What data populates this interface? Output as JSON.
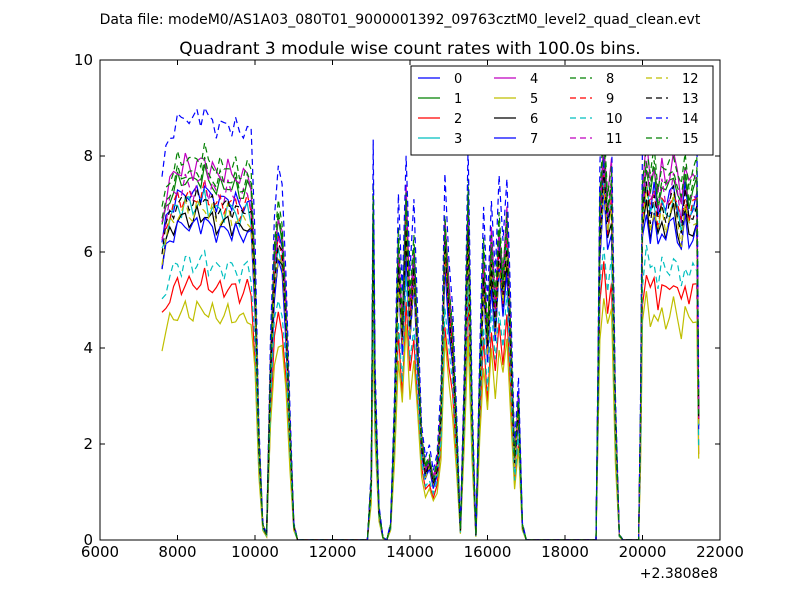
{
  "suptitle": "Data file: modeM0/AS1A03_080T01_9000001392_09763cztM0_level2_quad_clean.evt",
  "chart_data": {
    "type": "line",
    "title": "Quadrant 3 module wise count rates with 100.0s bins.",
    "xlabel": "",
    "ylabel": "",
    "xlim": [
      6000,
      22000
    ],
    "ylim": [
      0,
      10
    ],
    "x_offset_label": "+2.3808e8",
    "xticks": [
      "6000",
      "8000",
      "10000",
      "12000",
      "14000",
      "16000",
      "18000",
      "20000",
      "22000"
    ],
    "xtick_values": [
      6000,
      8000,
      10000,
      12000,
      14000,
      16000,
      18000,
      20000,
      22000
    ],
    "yticks": [
      "0",
      "2",
      "4",
      "6",
      "8",
      "10"
    ],
    "ytick_values": [
      0,
      2,
      4,
      6,
      8,
      10
    ],
    "legend_position": "upper-right",
    "envelope": [
      [
        7600,
        6.2
      ],
      [
        7700,
        6.6
      ],
      [
        7800,
        6.9
      ],
      [
        7900,
        7.0
      ],
      [
        8000,
        7.2
      ],
      [
        8100,
        7.1
      ],
      [
        8200,
        7.3
      ],
      [
        8300,
        7.2
      ],
      [
        8400,
        7.1
      ],
      [
        8500,
        7.3
      ],
      [
        8600,
        7.2
      ],
      [
        8700,
        7.4
      ],
      [
        8800,
        7.1
      ],
      [
        8900,
        7.2
      ],
      [
        9000,
        7.0
      ],
      [
        9100,
        7.1
      ],
      [
        9200,
        7.0
      ],
      [
        9300,
        7.2
      ],
      [
        9400,
        7.0
      ],
      [
        9500,
        7.1
      ],
      [
        9600,
        6.9
      ],
      [
        9700,
        7.0
      ],
      [
        9800,
        7.1
      ],
      [
        9900,
        6.9
      ],
      [
        10000,
        5.2
      ],
      [
        10100,
        2.0
      ],
      [
        10200,
        0.3
      ],
      [
        10300,
        0.1
      ],
      [
        10400,
        3.5
      ],
      [
        10500,
        5.6
      ],
      [
        10600,
        6.3
      ],
      [
        10700,
        6.0
      ],
      [
        10800,
        4.6
      ],
      [
        10900,
        2.3
      ],
      [
        11000,
        0.3
      ],
      [
        11100,
        0.0
      ],
      [
        12900,
        0.0
      ],
      [
        13000,
        1.2
      ],
      [
        13050,
        6.7
      ],
      [
        13100,
        3.0
      ],
      [
        13200,
        0.6
      ],
      [
        13300,
        0.05
      ],
      [
        13400,
        0.0
      ],
      [
        13500,
        0.3
      ],
      [
        13600,
        2.5
      ],
      [
        13700,
        5.8
      ],
      [
        13800,
        4.2
      ],
      [
        13900,
        6.7
      ],
      [
        14000,
        4.6
      ],
      [
        14100,
        5.7
      ],
      [
        14200,
        3.8
      ],
      [
        14300,
        2.0
      ],
      [
        14400,
        1.4
      ],
      [
        14500,
        1.6
      ],
      [
        14600,
        1.2
      ],
      [
        14700,
        1.5
      ],
      [
        14800,
        2.6
      ],
      [
        14900,
        6.2
      ],
      [
        15000,
        4.9
      ],
      [
        15100,
        4.0
      ],
      [
        15200,
        2.2
      ],
      [
        15300,
        0.2
      ],
      [
        15400,
        3.0
      ],
      [
        15500,
        6.7
      ],
      [
        15600,
        2.5
      ],
      [
        15700,
        0.1
      ],
      [
        15800,
        3.3
      ],
      [
        15900,
        5.6
      ],
      [
        16000,
        4.0
      ],
      [
        16100,
        5.9
      ],
      [
        16200,
        4.6
      ],
      [
        16300,
        6.1
      ],
      [
        16400,
        5.1
      ],
      [
        16500,
        6.3
      ],
      [
        16600,
        4.0
      ],
      [
        16700,
        1.6
      ],
      [
        16800,
        2.8
      ],
      [
        16900,
        0.3
      ],
      [
        17000,
        0.0
      ],
      [
        18800,
        0.0
      ],
      [
        18850,
        3.0
      ],
      [
        18900,
        6.5
      ],
      [
        19000,
        7.8
      ],
      [
        19100,
        6.6
      ],
      [
        19200,
        7.2
      ],
      [
        19300,
        2.5
      ],
      [
        19400,
        0.1
      ],
      [
        19500,
        0.0
      ],
      [
        19900,
        0.0
      ],
      [
        19950,
        2.5
      ],
      [
        20000,
        6.8
      ],
      [
        20100,
        7.6
      ],
      [
        20200,
        6.9
      ],
      [
        20300,
        7.3
      ],
      [
        20400,
        6.7
      ],
      [
        20500,
        7.2
      ],
      [
        20600,
        6.9
      ],
      [
        20700,
        7.1
      ],
      [
        20800,
        7.4
      ],
      [
        20900,
        7.0
      ],
      [
        21000,
        6.6
      ],
      [
        21100,
        7.3
      ],
      [
        21200,
        6.8
      ],
      [
        21300,
        7.0
      ],
      [
        21400,
        7.1
      ],
      [
        21450,
        2.5
      ]
    ],
    "series": [
      {
        "name": "0",
        "color": "#0000ff",
        "dashed": false,
        "scale": 1.0
      },
      {
        "name": "1",
        "color": "#008000",
        "dashed": false,
        "scale": 1.04
      },
      {
        "name": "2",
        "color": "#ff0000",
        "dashed": false,
        "scale": 0.74
      },
      {
        "name": "3",
        "color": "#00bfbf",
        "dashed": false,
        "scale": 0.97
      },
      {
        "name": "4",
        "color": "#bf00bf",
        "dashed": false,
        "scale": 1.08
      },
      {
        "name": "5",
        "color": "#bfbf00",
        "dashed": false,
        "scale": 0.66
      },
      {
        "name": "6",
        "color": "#000000",
        "dashed": false,
        "scale": 0.93
      },
      {
        "name": "7",
        "color": "#0000ff",
        "dashed": false,
        "scale": 0.91
      },
      {
        "name": "8",
        "color": "#008000",
        "dashed": true,
        "scale": 1.1
      },
      {
        "name": "9",
        "color": "#ff0000",
        "dashed": true,
        "scale": 0.99
      },
      {
        "name": "10",
        "color": "#00bfbf",
        "dashed": true,
        "scale": 0.8
      },
      {
        "name": "11",
        "color": "#bf00bf",
        "dashed": true,
        "scale": 1.02
      },
      {
        "name": "12",
        "color": "#bfbf00",
        "dashed": true,
        "scale": 0.95
      },
      {
        "name": "13",
        "color": "#000000",
        "dashed": true,
        "scale": 0.98
      },
      {
        "name": "14",
        "color": "#0000ff",
        "dashed": true,
        "scale": 1.22
      },
      {
        "name": "15",
        "color": "#008000",
        "dashed": true,
        "scale": 1.06
      }
    ]
  }
}
